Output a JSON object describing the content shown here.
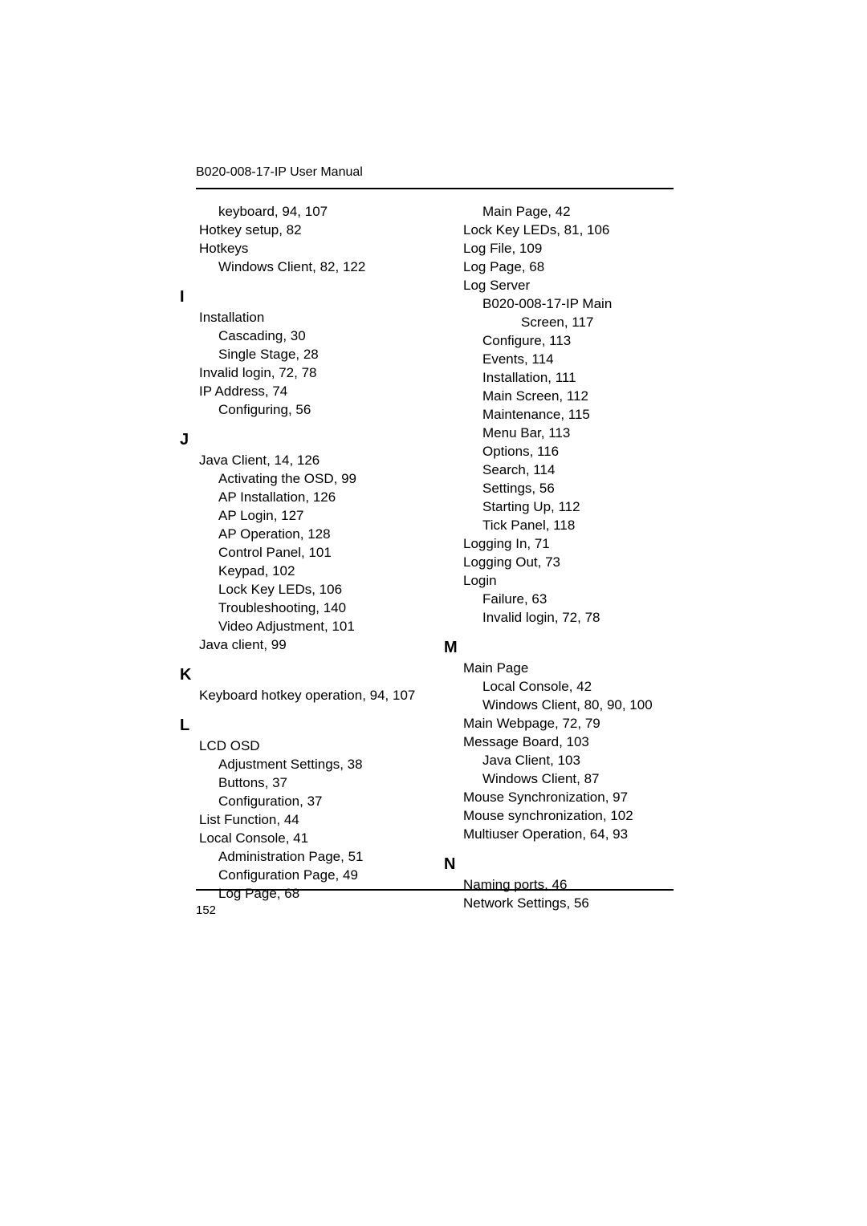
{
  "doc": {
    "header_title": "B020-008-17-IP User Manual",
    "page_number": "152"
  },
  "left": {
    "top": [
      {
        "text": "keyboard, 94, 107",
        "indent": 2
      },
      {
        "text": "Hotkey setup, 82",
        "indent": 1
      },
      {
        "text": "Hotkeys",
        "indent": 1
      },
      {
        "text": "Windows Client, 82, 122",
        "indent": 2
      }
    ],
    "I": [
      {
        "text": "Installation",
        "indent": 1
      },
      {
        "text": "Cascading, 30",
        "indent": 2
      },
      {
        "text": "Single Stage, 28",
        "indent": 2
      },
      {
        "text": "Invalid login, 72, 78",
        "indent": 1
      },
      {
        "text": "IP Address, 74",
        "indent": 1
      },
      {
        "text": "Configuring, 56",
        "indent": 2
      }
    ],
    "J": [
      {
        "text": "Java Client, 14, 126",
        "indent": 1
      },
      {
        "text": "Activating the OSD, 99",
        "indent": 2
      },
      {
        "text": "AP Installation, 126",
        "indent": 2
      },
      {
        "text": "AP Login, 127",
        "indent": 2
      },
      {
        "text": "AP Operation, 128",
        "indent": 2
      },
      {
        "text": "Control Panel, 101",
        "indent": 2
      },
      {
        "text": "Keypad, 102",
        "indent": 2
      },
      {
        "text": "Lock Key LEDs, 106",
        "indent": 2
      },
      {
        "text": "Troubleshooting, 140",
        "indent": 2
      },
      {
        "text": "Video Adjustment, 101",
        "indent": 2
      },
      {
        "text": "Java client, 99",
        "indent": 1
      }
    ],
    "K": [
      {
        "text": "Keyboard hotkey operation, 94, 107",
        "indent": 1
      }
    ],
    "L": [
      {
        "text": "LCD OSD",
        "indent": 1
      },
      {
        "text": "Adjustment Settings, 38",
        "indent": 2
      },
      {
        "text": "Buttons, 37",
        "indent": 2
      },
      {
        "text": "Configuration, 37",
        "indent": 2
      },
      {
        "text": "List Function, 44",
        "indent": 1
      },
      {
        "text": "Local Console, 41",
        "indent": 1
      },
      {
        "text": "Administration Page, 51",
        "indent": 2
      },
      {
        "text": "Configuration Page, 49",
        "indent": 2
      },
      {
        "text": "Log Page, 68",
        "indent": 2
      }
    ]
  },
  "right": {
    "top": [
      {
        "text": "Main Page, 42",
        "indent": 2
      },
      {
        "text": "Lock Key LEDs, 81, 106",
        "indent": 1
      },
      {
        "text": "Log File, 109",
        "indent": 1
      },
      {
        "text": "Log Page, 68",
        "indent": 1
      },
      {
        "text": "Log Server",
        "indent": 1
      },
      {
        "text": "B020-008-17-IP Main",
        "indent": 2
      },
      {
        "text": "Screen, 117",
        "indent": 3
      },
      {
        "text": "Configure, 113",
        "indent": 2
      },
      {
        "text": "Events, 114",
        "indent": 2
      },
      {
        "text": "Installation, 111",
        "indent": 2
      },
      {
        "text": "Main Screen, 112",
        "indent": 2
      },
      {
        "text": "Maintenance, 115",
        "indent": 2
      },
      {
        "text": "Menu Bar, 113",
        "indent": 2
      },
      {
        "text": "Options, 116",
        "indent": 2
      },
      {
        "text": "Search, 114",
        "indent": 2
      },
      {
        "text": "Settings, 56",
        "indent": 2
      },
      {
        "text": "Starting Up, 112",
        "indent": 2
      },
      {
        "text": "Tick Panel, 118",
        "indent": 2
      },
      {
        "text": "Logging In, 71",
        "indent": 1
      },
      {
        "text": "Logging Out, 73",
        "indent": 1
      },
      {
        "text": "Login",
        "indent": 1
      },
      {
        "text": "Failure, 63",
        "indent": 2
      },
      {
        "text": "Invalid login, 72, 78",
        "indent": 2
      }
    ],
    "M": [
      {
        "text": "Main Page",
        "indent": 1
      },
      {
        "text": "Local Console, 42",
        "indent": 2
      },
      {
        "text": "Windows Client, 80, 90, 100",
        "indent": 2
      },
      {
        "text": "Main Webpage, 72, 79",
        "indent": 1
      },
      {
        "text": "Message Board, 103",
        "indent": 1
      },
      {
        "text": "Java Client, 103",
        "indent": 2
      },
      {
        "text": "Windows Client, 87",
        "indent": 2
      },
      {
        "text": "Mouse Synchronization, 97",
        "indent": 1
      },
      {
        "text": "Mouse synchronization, 102",
        "indent": 1
      },
      {
        "text": "Multiuser Operation, 64, 93",
        "indent": 1
      }
    ],
    "N": [
      {
        "text": "Naming ports, 46",
        "indent": 1
      },
      {
        "text": "Network Settings, 56",
        "indent": 1
      }
    ]
  },
  "letters": {
    "I": "I",
    "J": "J",
    "K": "K",
    "L": "L",
    "M": "M",
    "N": "N"
  }
}
